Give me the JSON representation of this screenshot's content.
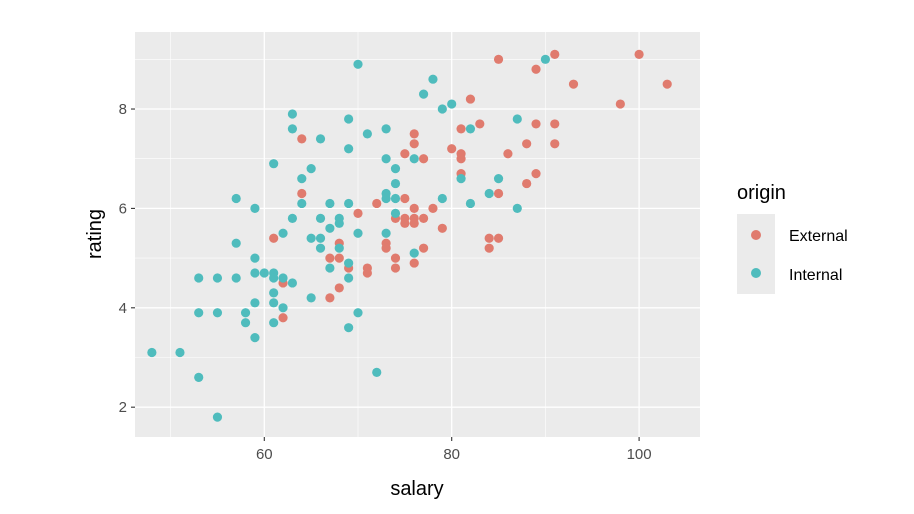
{
  "chart_data": {
    "type": "scatter",
    "xlabel": "salary",
    "ylabel": "rating",
    "xlim": [
      46.2,
      106.5
    ],
    "ylim": [
      1.4,
      9.55
    ],
    "x_ticks": [
      60,
      80,
      100
    ],
    "y_ticks": [
      2,
      4,
      6,
      8
    ],
    "x_tick_labels": [
      "60",
      "80",
      "100"
    ],
    "y_tick_labels": [
      "2",
      "4",
      "6",
      "8"
    ],
    "grid": true,
    "legend": {
      "title": "origin",
      "position": "right"
    },
    "series": [
      {
        "name": "External",
        "color": "#e07b6e",
        "points": [
          [
            85,
            9.0
          ],
          [
            89,
            8.8
          ],
          [
            91,
            9.1
          ],
          [
            100,
            9.1
          ],
          [
            103,
            8.5
          ],
          [
            93,
            8.5
          ],
          [
            98,
            8.1
          ],
          [
            82,
            8.2
          ],
          [
            83,
            7.7
          ],
          [
            81,
            7.6
          ],
          [
            89,
            7.7
          ],
          [
            91,
            7.7
          ],
          [
            88,
            7.3
          ],
          [
            91,
            7.3
          ],
          [
            76,
            7.5
          ],
          [
            76,
            7.3
          ],
          [
            75,
            7.1
          ],
          [
            77,
            7.0
          ],
          [
            80,
            7.2
          ],
          [
            81,
            7.1
          ],
          [
            81,
            7.0
          ],
          [
            86,
            7.1
          ],
          [
            81,
            6.7
          ],
          [
            89,
            6.7
          ],
          [
            88,
            6.5
          ],
          [
            85,
            6.3
          ],
          [
            64,
            7.4
          ],
          [
            64,
            6.3
          ],
          [
            72,
            6.1
          ],
          [
            75,
            6.2
          ],
          [
            78,
            6.0
          ],
          [
            76,
            6.0
          ],
          [
            70,
            5.9
          ],
          [
            74,
            5.8
          ],
          [
            75,
            5.8
          ],
          [
            75,
            5.7
          ],
          [
            76,
            5.8
          ],
          [
            76,
            5.7
          ],
          [
            77,
            5.8
          ],
          [
            79,
            5.6
          ],
          [
            73,
            5.3
          ],
          [
            73,
            5.2
          ],
          [
            77,
            5.2
          ],
          [
            68,
            5.3
          ],
          [
            67,
            5.0
          ],
          [
            68,
            5.0
          ],
          [
            69,
            4.8
          ],
          [
            74,
            5.0
          ],
          [
            76,
            4.9
          ],
          [
            71,
            4.8
          ],
          [
            71,
            4.7
          ],
          [
            74,
            4.8
          ],
          [
            68,
            4.4
          ],
          [
            67,
            4.2
          ],
          [
            61,
            5.4
          ],
          [
            62,
            4.5
          ],
          [
            62,
            3.8
          ],
          [
            84,
            5.4
          ],
          [
            85,
            5.4
          ],
          [
            84,
            5.2
          ]
        ]
      },
      {
        "name": "Internal",
        "color": "#4fbcbd",
        "points": [
          [
            70,
            8.9
          ],
          [
            90,
            9.0
          ],
          [
            78,
            8.6
          ],
          [
            77,
            8.3
          ],
          [
            80,
            8.1
          ],
          [
            79,
            8.0
          ],
          [
            63,
            7.9
          ],
          [
            69,
            7.8
          ],
          [
            87,
            7.8
          ],
          [
            63,
            7.6
          ],
          [
            73,
            7.6
          ],
          [
            82,
            7.6
          ],
          [
            71,
            7.5
          ],
          [
            66,
            7.4
          ],
          [
            69,
            7.2
          ],
          [
            73,
            7.0
          ],
          [
            76,
            7.0
          ],
          [
            74,
            6.8
          ],
          [
            61,
            6.9
          ],
          [
            65,
            6.8
          ],
          [
            64,
            6.6
          ],
          [
            74,
            6.5
          ],
          [
            81,
            6.6
          ],
          [
            85,
            6.6
          ],
          [
            74,
            6.2
          ],
          [
            73,
            6.3
          ],
          [
            73,
            6.2
          ],
          [
            57,
            6.2
          ],
          [
            59,
            6.0
          ],
          [
            64,
            6.1
          ],
          [
            67,
            6.1
          ],
          [
            69,
            6.1
          ],
          [
            79,
            6.2
          ],
          [
            82,
            6.1
          ],
          [
            84,
            6.3
          ],
          [
            87,
            6.0
          ],
          [
            63,
            5.8
          ],
          [
            66,
            5.8
          ],
          [
            68,
            5.8
          ],
          [
            68,
            5.7
          ],
          [
            74,
            5.9
          ],
          [
            67,
            5.6
          ],
          [
            70,
            5.5
          ],
          [
            73,
            5.5
          ],
          [
            62,
            5.5
          ],
          [
            65,
            5.4
          ],
          [
            66,
            5.4
          ],
          [
            57,
            5.3
          ],
          [
            66,
            5.2
          ],
          [
            68,
            5.2
          ],
          [
            59,
            5.0
          ],
          [
            76,
            5.1
          ],
          [
            59,
            4.7
          ],
          [
            60,
            4.7
          ],
          [
            61,
            4.7
          ],
          [
            61,
            4.6
          ],
          [
            62,
            4.6
          ],
          [
            67,
            4.8
          ],
          [
            69,
            4.9
          ],
          [
            69,
            4.6
          ],
          [
            53,
            4.6
          ],
          [
            55,
            4.6
          ],
          [
            57,
            4.6
          ],
          [
            63,
            4.5
          ],
          [
            61,
            4.3
          ],
          [
            59,
            4.1
          ],
          [
            61,
            4.1
          ],
          [
            65,
            4.2
          ],
          [
            62,
            4.0
          ],
          [
            53,
            3.9
          ],
          [
            55,
            3.9
          ],
          [
            58,
            3.9
          ],
          [
            70,
            3.9
          ],
          [
            58,
            3.7
          ],
          [
            61,
            3.7
          ],
          [
            69,
            3.6
          ],
          [
            59,
            3.4
          ],
          [
            48,
            3.1
          ],
          [
            51,
            3.1
          ],
          [
            53,
            2.6
          ],
          [
            72,
            2.7
          ],
          [
            55,
            1.8
          ]
        ]
      }
    ]
  }
}
